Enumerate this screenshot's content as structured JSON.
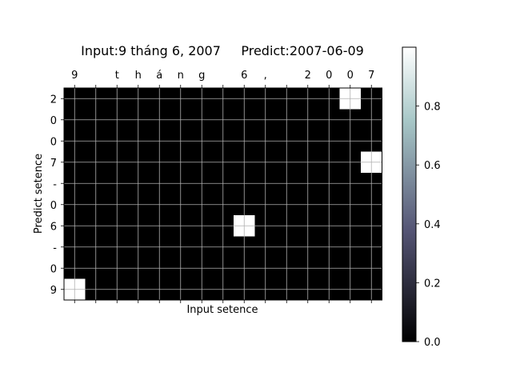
{
  "chart_data": {
    "type": "heatmap",
    "title": "Input:9 tháng 6, 2007     Predict:2007-06-09",
    "xlabel": "Input setence",
    "ylabel": "Predict setence",
    "x_tokens": [
      "9",
      " ",
      "t",
      "h",
      "á",
      "n",
      "g",
      " ",
      "6",
      ",",
      " ",
      "2",
      "0",
      "0",
      "7"
    ],
    "y_tokens": [
      "2",
      "0",
      "0",
      "7",
      "-",
      "0",
      "6",
      "-",
      "0",
      "9"
    ],
    "cells": [
      {
        "row": 0,
        "col": 13,
        "value": 1.0
      },
      {
        "row": 3,
        "col": 14,
        "value": 1.0
      },
      {
        "row": 6,
        "col": 8,
        "value": 1.0
      },
      {
        "row": 9,
        "col": 0,
        "value": 1.0
      }
    ],
    "default_value": 0.0,
    "colormap": "bone",
    "colorbar": {
      "min": 0.0,
      "max": 1.0,
      "ticks": [
        0.0,
        0.2,
        0.4,
        0.6,
        0.8
      ],
      "tick_labels": [
        "0.0",
        "0.2",
        "0.4",
        "0.6",
        "0.8"
      ]
    },
    "grid": true
  }
}
